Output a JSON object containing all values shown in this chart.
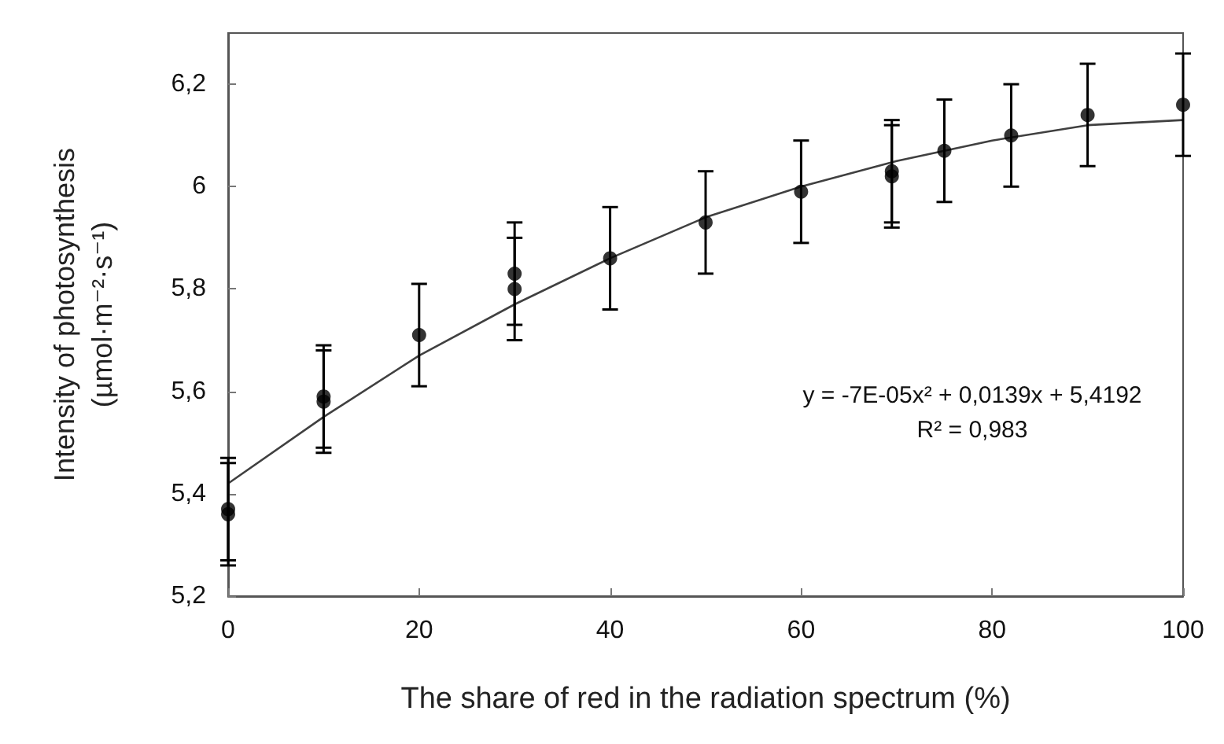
{
  "chart_data": {
    "type": "scatter",
    "xlabel": "The share of red in the radiation spectrum (%)",
    "ylabel": "Intensity of photosynthesis\n(µmol·m⁻²·s⁻¹)",
    "xlim": [
      0,
      100
    ],
    "xticks": [
      0,
      20,
      40,
      60,
      80,
      100
    ],
    "ylim": [
      5.2,
      6.3
    ],
    "yticks": [
      {
        "value": 5.2,
        "label": "5,2"
      },
      {
        "value": 5.4,
        "label": "5,4"
      },
      {
        "value": 5.6,
        "label": "5,6"
      },
      {
        "value": 5.8,
        "label": "5,8"
      },
      6,
      {
        "value": 6.2,
        "label": "6,2"
      }
    ],
    "grid": false,
    "marker": "circle",
    "series": [
      {
        "color": "#000000",
        "x": [
          0,
          0,
          10,
          10,
          20,
          30,
          30,
          40,
          50,
          60,
          69.5,
          69.5,
          75,
          82,
          90,
          100
        ],
        "values": [
          5.37,
          5.36,
          5.59,
          5.58,
          5.71,
          5.83,
          5.8,
          5.86,
          5.93,
          5.99,
          6.03,
          6.02,
          6.07,
          6.1,
          6.14,
          6.16
        ],
        "errors": [
          0.1,
          0.1,
          0.1,
          0.1,
          0.1,
          0.1,
          0.1,
          0.1,
          0.1,
          0.1,
          0.1,
          0.1,
          0.1,
          0.1,
          0.1,
          0.1
        ]
      },
      {
        "type": "line",
        "marker": "none",
        "color": "#404040",
        "x": [
          0,
          10,
          20,
          30,
          40,
          50,
          60,
          70,
          80,
          90,
          100
        ],
        "values": [
          5.42,
          5.55,
          5.67,
          5.77,
          5.86,
          5.94,
          6.0,
          6.05,
          6.09,
          6.12,
          6.13
        ]
      }
    ],
    "annotations": [
      "y = -7E-05x² + 0,0139x + 5,4192",
      "R² = 0,983"
    ]
  }
}
